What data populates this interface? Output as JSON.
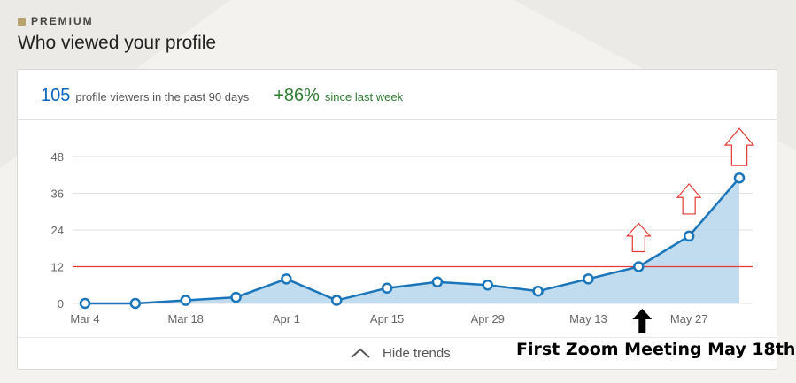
{
  "premium": {
    "label": "PREMIUM"
  },
  "page": {
    "title": "Who viewed your profile"
  },
  "stats": {
    "viewers_count": "105",
    "viewers_text": "profile viewers in the past 90 days",
    "change_pct": "+86%",
    "change_text": "since last week"
  },
  "toggle": {
    "label": "Hide trends",
    "icon": "chevron-up-icon"
  },
  "annotation": {
    "caption": "First Zoom Meeting May 18th",
    "reference_line_value": 12,
    "reference_line_color": "#e53935",
    "up_arrow_color": "#e53935",
    "pointer_arrow_color": "#000000"
  },
  "colors": {
    "brand": "#0a66c2",
    "positive": "#2e7d32",
    "area_fill": "#b9d8ec",
    "line": "#1b75bb"
  },
  "chart_data": {
    "type": "area",
    "x_tick_labels": [
      "Mar 4",
      "Mar 18",
      "Apr 1",
      "Apr 15",
      "Apr 29",
      "May 13",
      "May 27"
    ],
    "y_ticks": [
      0,
      12,
      24,
      36,
      48
    ],
    "ylim": [
      0,
      52
    ],
    "grid": true,
    "series": [
      {
        "x": [
          "Mar 4",
          "Mar 11",
          "Mar 18",
          "Mar 25",
          "Apr 1",
          "Apr 8",
          "Apr 15",
          "Apr 22",
          "Apr 29",
          "May 6",
          "May 13",
          "May 20",
          "May 27",
          "Jun 3"
        ],
        "values": [
          0,
          0,
          1,
          2,
          8,
          1,
          5,
          7,
          6,
          4,
          8,
          12,
          22,
          41
        ]
      }
    ]
  }
}
